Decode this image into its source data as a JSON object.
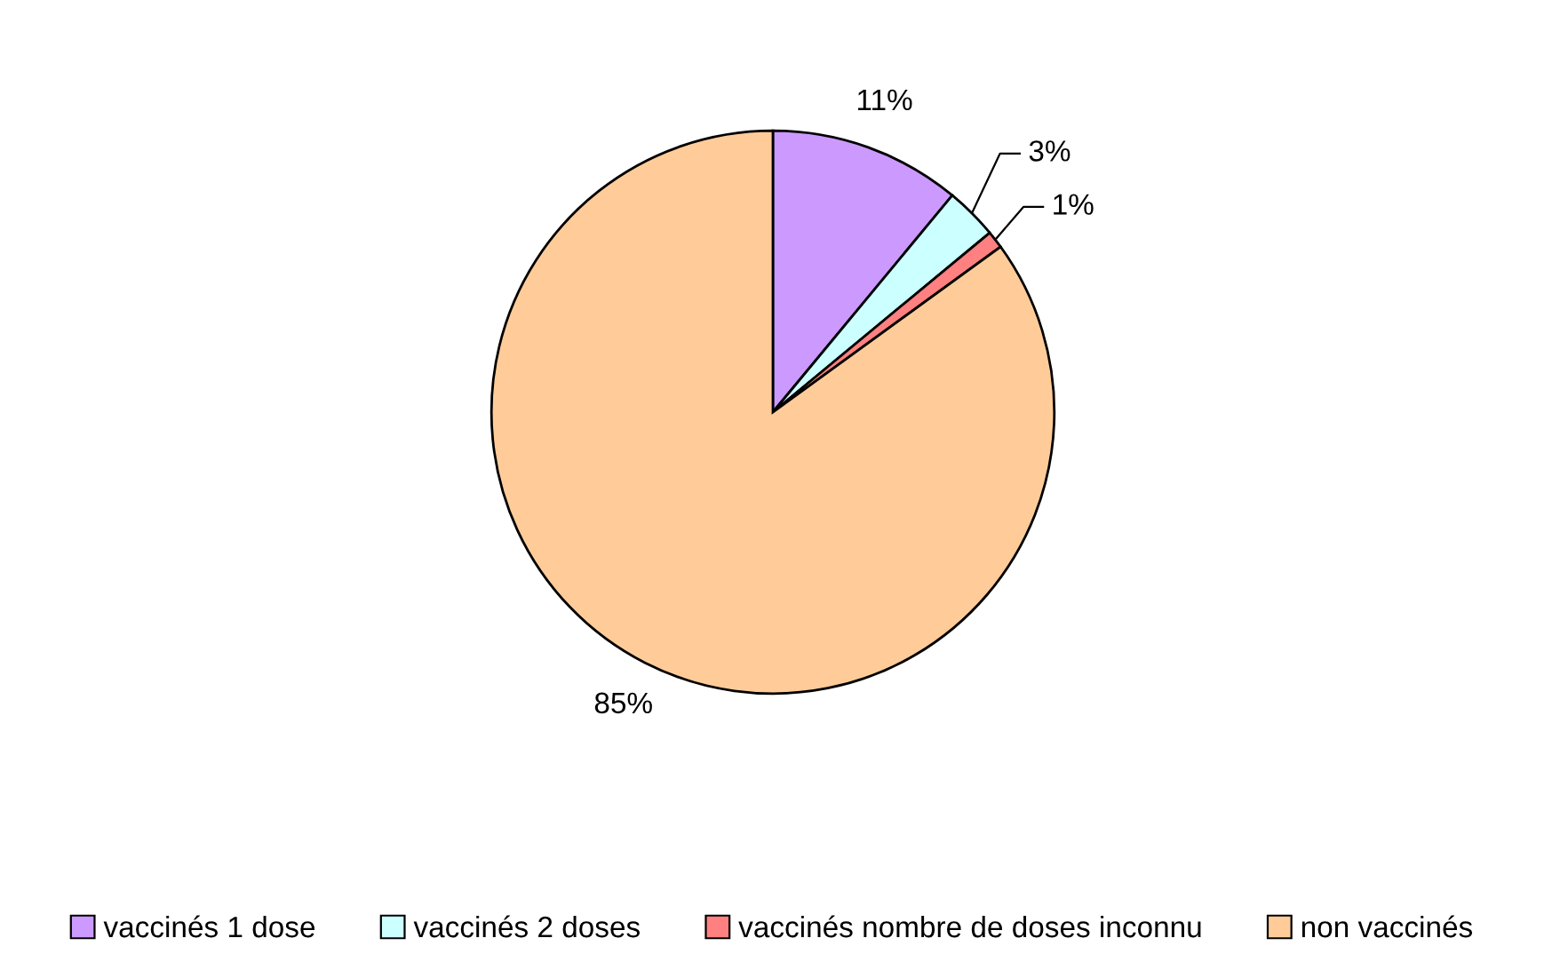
{
  "chart_data": {
    "type": "pie",
    "categories": [
      "vaccinés 1 dose",
      "vaccinés 2 doses",
      "vaccinés nombre de doses inconnu",
      "non vaccinés"
    ],
    "values": [
      11,
      3,
      1,
      85
    ],
    "colors": [
      "#cc99ff",
      "#ccffff",
      "#ff8080",
      "#ffcc99"
    ],
    "value_labels": [
      "11%",
      "3%",
      "1%",
      "85%"
    ],
    "legend": "bottom"
  }
}
